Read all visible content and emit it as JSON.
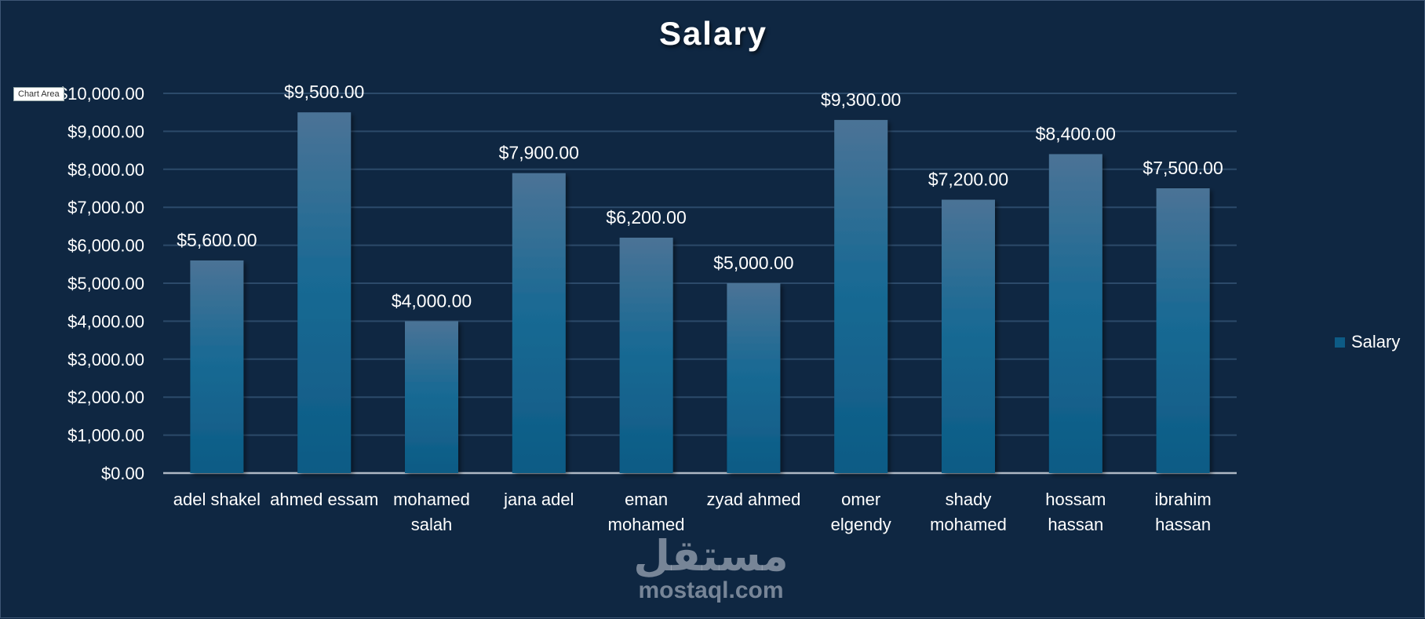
{
  "chart_data": {
    "type": "bar",
    "title": "Salary",
    "categories": [
      "adel shakel",
      "ahmed essam",
      "mohamed salah",
      "jana adel",
      "eman mohamed",
      "zyad ahmed",
      "omer elgendy",
      "shady mohamed",
      "hossam hassan",
      "ibrahim hassan"
    ],
    "series": [
      {
        "name": "Salary",
        "values": [
          5600,
          9500,
          4000,
          7900,
          6200,
          5000,
          9300,
          7200,
          8400,
          7500
        ]
      }
    ],
    "ylim": [
      0,
      10000
    ],
    "yticks": [
      0,
      1000,
      2000,
      3000,
      4000,
      5000,
      6000,
      7000,
      8000,
      9000,
      10000
    ],
    "value_format": "currency_2dp",
    "grid": true,
    "legend_position": "right",
    "colors": {
      "bar_top": "#4b7396",
      "bar_bottom": "#0d5b85",
      "background": "#0f2742",
      "grid": "#2c4a6a"
    }
  },
  "tooltip": "Chart Area",
  "watermark": {
    "arabic": "مستقل",
    "latin": "mostaql.com"
  }
}
